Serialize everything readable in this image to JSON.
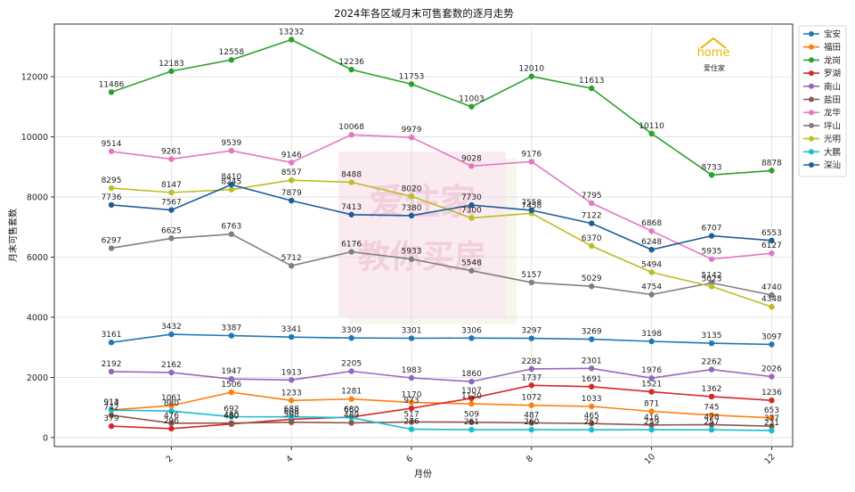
{
  "chart_data": {
    "type": "line",
    "title": "2024年各区域月末可售套数的逐月走势",
    "xlabel": "月份",
    "ylabel": "月末可售套数",
    "x": [
      1,
      2,
      3,
      4,
      5,
      6,
      7,
      8,
      9,
      10,
      11,
      12
    ],
    "xticks": [
      2,
      4,
      6,
      8,
      10,
      12
    ],
    "xlim": [
      0.05,
      12.35
    ],
    "ylim": [
      -300,
      13750
    ],
    "yticks": [
      0,
      2000,
      4000,
      6000,
      8000,
      10000,
      12000
    ],
    "grid": true,
    "legend_position": "top-right",
    "series": [
      {
        "name": "宝安",
        "color": "#1f77b4",
        "values": [
          3161,
          3432,
          3387,
          3341,
          3309,
          3301,
          3306,
          3297,
          3269,
          3198,
          3135,
          3097
        ]
      },
      {
        "name": "福田",
        "color": "#ff7f0e",
        "values": [
          914,
          1061,
          1506,
          1233,
          1281,
          1170,
          1120,
          1072,
          1033,
          871,
          745,
          653
        ]
      },
      {
        "name": "龙岗",
        "color": "#2ca02c",
        "values": [
          11486,
          12183,
          12558,
          13232,
          12236,
          11753,
          11003,
          12010,
          11613,
          10110,
          8733,
          8878
        ]
      },
      {
        "name": "罗湖",
        "color": "#d62728",
        "values": [
          379,
          296,
          450,
          608,
          680,
          973,
          1307,
          1737,
          1691,
          1521,
          1362,
          1236
        ]
      },
      {
        "name": "南山",
        "color": "#9467bd",
        "values": [
          2192,
          2162,
          1947,
          1913,
          2205,
          1983,
          1860,
          2282,
          2301,
          1976,
          2262,
          2026
        ]
      },
      {
        "name": "盐田",
        "color": "#8c564b",
        "values": [
          742,
          476,
          480,
          508,
          489,
          517,
          509,
          487,
          465,
          416,
          428,
          377
        ]
      },
      {
        "name": "龙华",
        "color": "#e377c2",
        "values": [
          9514,
          9261,
          9539,
          9146,
          10068,
          9979,
          9028,
          9176,
          7795,
          6868,
          5935,
          6127
        ]
      },
      {
        "name": "坪山",
        "color": "#7f7f7f",
        "values": [
          6297,
          6625,
          6763,
          5712,
          6176,
          5933,
          5548,
          5157,
          5029,
          4754,
          5142,
          4740
        ]
      },
      {
        "name": "光明",
        "color": "#bcbd22",
        "values": [
          8295,
          8147,
          8245,
          8557,
          8488,
          8020,
          7300,
          7458,
          6370,
          5494,
          5023,
          4348
        ]
      },
      {
        "name": "大鹏",
        "color": "#17becf",
        "values": [
          913,
          880,
          692,
          688,
          660,
          276,
          261,
          260,
          257,
          259,
          257,
          231
        ]
      },
      {
        "name": "深汕",
        "color": "#1f5c99",
        "values": [
          7736,
          7567,
          8410,
          7879,
          7413,
          7380,
          7730,
          7558,
          7122,
          6248,
          6707,
          6553
        ]
      }
    ],
    "watermark": [
      "爱住家",
      "教你买房"
    ],
    "logo_text": [
      "home",
      "爱住家"
    ]
  }
}
